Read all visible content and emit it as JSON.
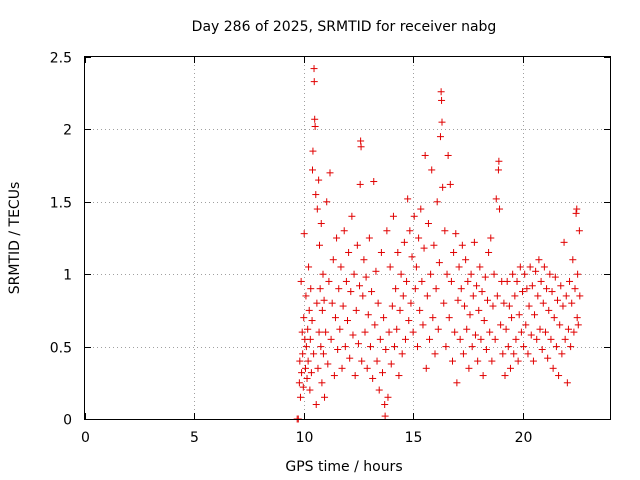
{
  "chart_data": {
    "type": "scatter",
    "title": "Day 286 of 2025, SRMTID for receiver nabg",
    "xlabel": "GPS time / hours",
    "ylabel": "SRMTID / TECUs",
    "xlim": [
      0,
      24
    ],
    "ylim": [
      0,
      2.5
    ],
    "x_ticks": [
      0,
      5,
      10,
      15,
      20
    ],
    "y_ticks": [
      0,
      0.5,
      1,
      1.5,
      2,
      2.5
    ],
    "x_tick_labels": [
      "0",
      "5",
      "10",
      "15",
      "20"
    ],
    "y_tick_labels": [
      "0",
      "0.5",
      "1",
      "1.5",
      "2",
      "2.5"
    ],
    "grid": true,
    "marker": "+",
    "color": "#e00000",
    "series": [
      {
        "name": "SRMTID",
        "points": [
          [
            9.7,
            0.0
          ],
          [
            9.75,
            0.0
          ],
          [
            9.8,
            0.25
          ],
          [
            9.82,
            0.4
          ],
          [
            9.85,
            0.15
          ],
          [
            9.88,
            0.95
          ],
          [
            9.9,
            0.32
          ],
          [
            9.93,
            0.6
          ],
          [
            9.95,
            0.45
          ],
          [
            9.98,
            0.22
          ],
          [
            10.0,
            0.7
          ],
          [
            10.02,
            1.28
          ],
          [
            10.05,
            0.55
          ],
          [
            10.08,
            0.35
          ],
          [
            10.1,
            0.85
          ],
          [
            10.12,
            0.5
          ],
          [
            10.15,
            0.28
          ],
          [
            10.18,
            0.62
          ],
          [
            10.2,
            0.4
          ],
          [
            10.22,
            1.05
          ],
          [
            10.25,
            0.75
          ],
          [
            10.28,
            0.2
          ],
          [
            10.3,
            0.55
          ],
          [
            10.32,
            0.9
          ],
          [
            10.35,
            0.32
          ],
          [
            10.38,
            0.68
          ],
          [
            10.4,
            1.72
          ],
          [
            10.42,
            1.85
          ],
          [
            10.45,
            0.45
          ],
          [
            10.47,
            2.42
          ],
          [
            10.48,
            2.33
          ],
          [
            10.5,
            2.07
          ],
          [
            10.52,
            2.02
          ],
          [
            10.55,
            1.55
          ],
          [
            10.57,
            0.1
          ],
          [
            10.6,
            0.8
          ],
          [
            10.62,
            1.45
          ],
          [
            10.65,
            0.35
          ],
          [
            10.68,
            1.65
          ],
          [
            10.7,
            0.6
          ],
          [
            10.72,
            1.2
          ],
          [
            10.75,
            0.9
          ],
          [
            10.78,
            0.5
          ],
          [
            10.8,
            1.35
          ],
          [
            10.83,
            0.25
          ],
          [
            10.85,
            0.75
          ],
          [
            10.88,
            1.0
          ],
          [
            10.9,
            0.45
          ],
          [
            10.93,
            0.82
          ],
          [
            10.95,
            0.15
          ],
          [
            11.0,
            0.6
          ],
          [
            11.05,
            1.5
          ],
          [
            11.1,
            0.38
          ],
          [
            11.15,
            0.95
          ],
          [
            11.2,
            1.7
          ],
          [
            11.25,
            0.55
          ],
          [
            11.3,
            0.8
          ],
          [
            11.35,
            1.1
          ],
          [
            11.4,
            0.3
          ],
          [
            11.45,
            0.7
          ],
          [
            11.5,
            1.25
          ],
          [
            11.55,
            0.48
          ],
          [
            11.6,
            0.9
          ],
          [
            11.65,
            0.62
          ],
          [
            11.7,
            1.05
          ],
          [
            11.75,
            0.35
          ],
          [
            11.8,
            0.78
          ],
          [
            11.85,
            1.3
          ],
          [
            11.9,
            0.5
          ],
          [
            11.95,
            0.95
          ],
          [
            12.0,
            0.68
          ],
          [
            12.05,
            1.15
          ],
          [
            12.1,
            0.42
          ],
          [
            12.15,
            0.88
          ],
          [
            12.2,
            1.4
          ],
          [
            12.25,
            0.58
          ],
          [
            12.3,
            1.0
          ],
          [
            12.35,
            0.3
          ],
          [
            12.4,
            0.75
          ],
          [
            12.45,
            1.2
          ],
          [
            12.5,
            0.52
          ],
          [
            12.55,
            0.92
          ],
          [
            12.58,
            1.62
          ],
          [
            12.6,
            1.92
          ],
          [
            12.62,
            1.88
          ],
          [
            12.65,
            0.4
          ],
          [
            12.7,
            0.85
          ],
          [
            12.75,
            1.1
          ],
          [
            12.8,
            0.6
          ],
          [
            12.85,
            0.98
          ],
          [
            12.9,
            0.35
          ],
          [
            12.95,
            0.72
          ],
          [
            13.0,
            1.25
          ],
          [
            13.05,
            0.5
          ],
          [
            13.1,
            0.88
          ],
          [
            13.15,
            0.28
          ],
          [
            13.2,
            1.64
          ],
          [
            13.25,
            0.65
          ],
          [
            13.3,
            1.02
          ],
          [
            13.35,
            0.4
          ],
          [
            13.4,
            0.8
          ],
          [
            13.45,
            0.2
          ],
          [
            13.5,
            0.55
          ],
          [
            13.55,
            1.15
          ],
          [
            13.6,
            0.32
          ],
          [
            13.65,
            0.7
          ],
          [
            13.7,
            0.1
          ],
          [
            13.72,
            0.02
          ],
          [
            13.75,
            0.48
          ],
          [
            13.8,
            1.3
          ],
          [
            13.85,
            0.15
          ],
          [
            13.9,
            0.6
          ],
          [
            13.95,
            1.05
          ],
          [
            14.0,
            0.38
          ],
          [
            14.05,
            0.78
          ],
          [
            14.1,
            1.4
          ],
          [
            14.15,
            0.5
          ],
          [
            14.2,
            0.9
          ],
          [
            14.25,
            0.62
          ],
          [
            14.3,
            1.15
          ],
          [
            14.35,
            0.3
          ],
          [
            14.4,
            0.75
          ],
          [
            14.45,
            1.0
          ],
          [
            14.5,
            0.45
          ],
          [
            14.55,
            0.85
          ],
          [
            14.6,
            1.22
          ],
          [
            14.65,
            0.55
          ],
          [
            14.7,
            0.95
          ],
          [
            14.75,
            1.52
          ],
          [
            14.8,
            0.68
          ],
          [
            14.85,
            1.3
          ],
          [
            14.9,
            0.8
          ],
          [
            14.95,
            1.12
          ],
          [
            15.0,
            0.6
          ],
          [
            15.05,
            1.4
          ],
          [
            15.1,
            0.9
          ],
          [
            15.15,
            1.05
          ],
          [
            15.2,
            0.5
          ],
          [
            15.25,
            1.25
          ],
          [
            15.3,
            0.75
          ],
          [
            15.35,
            1.45
          ],
          [
            15.4,
            0.95
          ],
          [
            15.45,
            0.65
          ],
          [
            15.5,
            1.18
          ],
          [
            15.55,
            1.82
          ],
          [
            15.6,
            0.35
          ],
          [
            15.65,
            0.85
          ],
          [
            15.7,
            1.35
          ],
          [
            15.75,
            0.55
          ],
          [
            15.8,
            1.0
          ],
          [
            15.85,
            1.72
          ],
          [
            15.9,
            0.7
          ],
          [
            15.95,
            1.2
          ],
          [
            16.0,
            0.45
          ],
          [
            16.05,
            0.9
          ],
          [
            16.1,
            1.5
          ],
          [
            16.15,
            0.62
          ],
          [
            16.2,
            1.08
          ],
          [
            16.25,
            1.95
          ],
          [
            16.28,
            2.26
          ],
          [
            16.3,
            2.2
          ],
          [
            16.32,
            2.05
          ],
          [
            16.35,
            1.6
          ],
          [
            16.4,
            0.8
          ],
          [
            16.45,
            1.3
          ],
          [
            16.5,
            0.5
          ],
          [
            16.55,
            1.0
          ],
          [
            16.6,
            1.82
          ],
          [
            16.65,
            0.7
          ],
          [
            16.7,
            1.62
          ],
          [
            16.75,
            0.95
          ],
          [
            16.8,
            0.4
          ],
          [
            16.85,
            1.15
          ],
          [
            16.9,
            0.6
          ],
          [
            16.95,
            1.28
          ],
          [
            17.0,
            0.25
          ],
          [
            17.05,
            0.82
          ],
          [
            17.1,
            1.05
          ],
          [
            17.15,
            0.55
          ],
          [
            17.2,
            0.9
          ],
          [
            17.25,
            1.2
          ],
          [
            17.3,
            0.45
          ],
          [
            17.35,
            0.78
          ],
          [
            17.4,
            1.1
          ],
          [
            17.45,
            0.62
          ],
          [
            17.5,
            0.95
          ],
          [
            17.55,
            0.35
          ],
          [
            17.6,
            0.72
          ],
          [
            17.65,
            1.0
          ],
          [
            17.7,
            0.5
          ],
          [
            17.75,
            0.85
          ],
          [
            17.8,
            1.22
          ],
          [
            17.85,
            0.58
          ],
          [
            17.9,
            0.92
          ],
          [
            17.95,
            0.4
          ],
          [
            18.0,
            0.75
          ],
          [
            18.05,
            1.05
          ],
          [
            18.1,
            0.55
          ],
          [
            18.15,
            0.88
          ],
          [
            18.2,
            0.3
          ],
          [
            18.25,
            0.68
          ],
          [
            18.3,
            0.98
          ],
          [
            18.35,
            0.48
          ],
          [
            18.4,
            0.82
          ],
          [
            18.45,
            1.15
          ],
          [
            18.5,
            0.6
          ],
          [
            18.55,
            1.25
          ],
          [
            18.6,
            0.4
          ],
          [
            18.65,
            0.78
          ],
          [
            18.7,
            1.0
          ],
          [
            18.75,
            0.55
          ],
          [
            18.8,
            1.52
          ],
          [
            18.85,
            0.85
          ],
          [
            18.9,
            1.72
          ],
          [
            18.92,
            1.78
          ],
          [
            18.95,
            1.45
          ],
          [
            19.0,
            0.65
          ],
          [
            19.05,
            0.95
          ],
          [
            19.1,
            0.45
          ],
          [
            19.15,
            0.8
          ],
          [
            19.2,
            0.3
          ],
          [
            19.25,
            0.62
          ],
          [
            19.3,
            0.95
          ],
          [
            19.35,
            0.5
          ],
          [
            19.4,
            0.78
          ],
          [
            19.45,
            0.35
          ],
          [
            19.5,
            0.7
          ],
          [
            19.55,
            1.0
          ],
          [
            19.6,
            0.45
          ],
          [
            19.65,
            0.85
          ],
          [
            19.7,
            0.55
          ],
          [
            19.75,
            0.95
          ],
          [
            19.8,
            0.4
          ],
          [
            19.85,
            0.72
          ],
          [
            19.9,
            1.05
          ],
          [
            19.95,
            0.6
          ],
          [
            20.0,
            0.88
          ],
          [
            20.05,
            0.5
          ],
          [
            20.1,
            1.0
          ],
          [
            20.15,
            0.65
          ],
          [
            20.2,
            0.9
          ],
          [
            20.25,
            0.45
          ],
          [
            20.3,
            0.78
          ],
          [
            20.35,
            1.05
          ],
          [
            20.4,
            0.58
          ],
          [
            20.45,
            0.92
          ],
          [
            20.5,
            0.4
          ],
          [
            20.55,
            0.72
          ],
          [
            20.6,
            1.02
          ],
          [
            20.65,
            0.55
          ],
          [
            20.7,
            0.85
          ],
          [
            20.75,
            1.1
          ],
          [
            20.8,
            0.62
          ],
          [
            20.85,
            0.95
          ],
          [
            20.9,
            0.48
          ],
          [
            20.95,
            0.8
          ],
          [
            21.0,
            1.05
          ],
          [
            21.05,
            0.6
          ],
          [
            21.1,
            0.9
          ],
          [
            21.15,
            0.42
          ],
          [
            21.2,
            0.75
          ],
          [
            21.25,
            1.0
          ],
          [
            21.3,
            0.55
          ],
          [
            21.35,
            0.88
          ],
          [
            21.4,
            0.35
          ],
          [
            21.45,
            0.7
          ],
          [
            21.5,
            0.98
          ],
          [
            21.55,
            0.5
          ],
          [
            21.6,
            0.82
          ],
          [
            21.65,
            0.3
          ],
          [
            21.7,
            0.65
          ],
          [
            21.75,
            0.92
          ],
          [
            21.8,
            0.45
          ],
          [
            21.85,
            0.78
          ],
          [
            21.9,
            1.22
          ],
          [
            21.95,
            0.55
          ],
          [
            22.0,
            0.85
          ],
          [
            22.05,
            0.25
          ],
          [
            22.1,
            0.62
          ],
          [
            22.15,
            0.95
          ],
          [
            22.2,
            0.5
          ],
          [
            22.25,
            0.8
          ],
          [
            22.3,
            1.1
          ],
          [
            22.35,
            0.6
          ],
          [
            22.4,
            0.9
          ],
          [
            22.45,
            1.42
          ],
          [
            22.48,
            1.45
          ],
          [
            22.5,
            0.7
          ],
          [
            22.52,
            1.0
          ],
          [
            22.55,
            0.65
          ],
          [
            22.6,
            1.3
          ],
          [
            22.62,
            0.85
          ]
        ]
      }
    ]
  }
}
